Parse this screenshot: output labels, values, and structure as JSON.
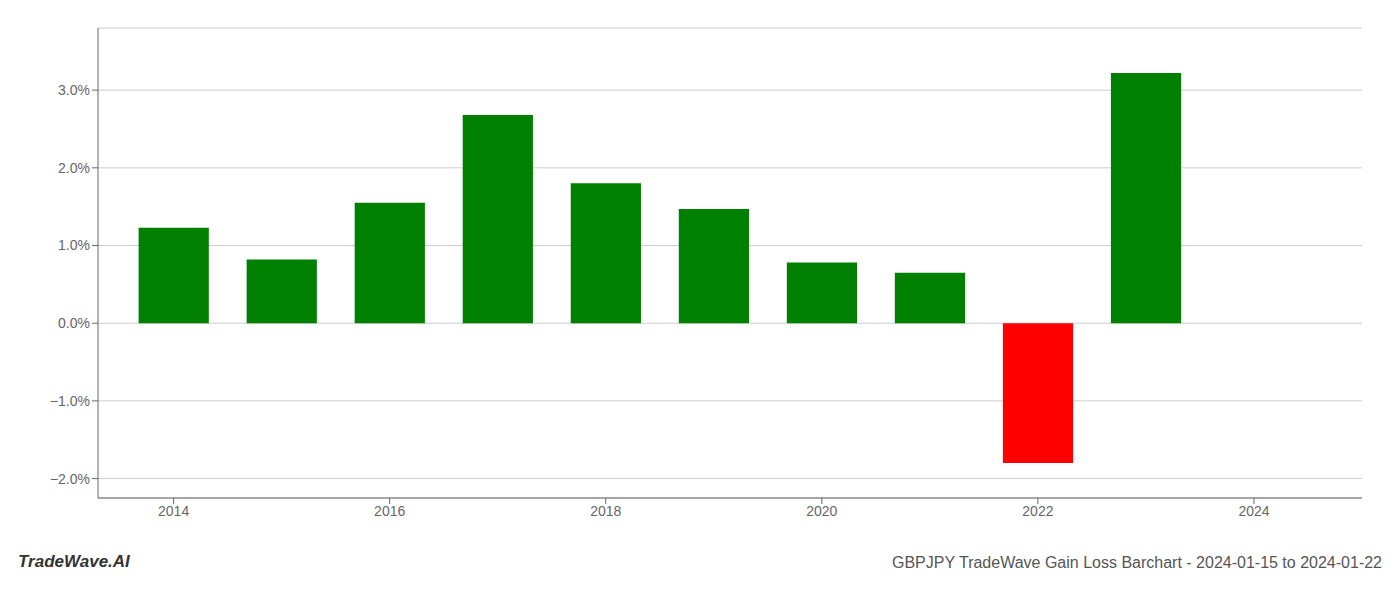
{
  "chart_data": {
    "type": "bar",
    "title": "GBPJPY TradeWave Gain Loss Barchart - 2024-01-15 to 2024-01-22",
    "annotations": [
      "TradeWave.AI"
    ],
    "x": [
      2014,
      2015,
      2016,
      2017,
      2018,
      2019,
      2020,
      2021,
      2022,
      2023
    ],
    "values": [
      0.0123,
      0.0082,
      0.0155,
      0.0268,
      0.018,
      0.0147,
      0.0078,
      0.0065,
      -0.018,
      0.0322
    ],
    "colors": [
      "#008000",
      "#008000",
      "#008000",
      "#008000",
      "#008000",
      "#008000",
      "#008000",
      "#008000",
      "#ff0000",
      "#008000"
    ],
    "xlim": [
      2013.3,
      2025.0
    ],
    "xticks": [
      2014,
      2016,
      2018,
      2020,
      2022,
      2024
    ],
    "ylim": [
      -0.0225,
      0.038
    ],
    "yticks": [
      {
        "value": -0.02,
        "label": "−2.0%"
      },
      {
        "value": -0.01,
        "label": "−1.0%"
      },
      {
        "value": 0,
        "label": "0.0%"
      },
      {
        "value": 0.01,
        "label": "1.0%"
      },
      {
        "value": 0.02,
        "label": "2.0%"
      },
      {
        "value": 0.03,
        "label": "3.0%"
      }
    ],
    "grid": true
  }
}
